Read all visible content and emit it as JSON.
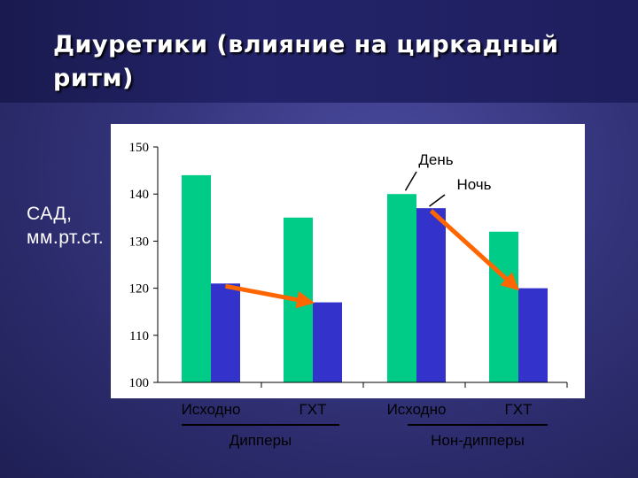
{
  "slide": {
    "title": "Диуретики (влияние на циркадный ритм)",
    "ylabel": "САД, мм.рт.ст."
  },
  "chart_data": {
    "type": "bar",
    "categories": [
      "Исходно",
      "ГХТ",
      "Исходно",
      "ГХТ"
    ],
    "groups": [
      {
        "label": "Дипперы",
        "categories": [
          0,
          1
        ]
      },
      {
        "label": "Нон-дипперы",
        "categories": [
          2,
          3
        ]
      }
    ],
    "series": [
      {
        "name": "День",
        "values": [
          144,
          135,
          140,
          132
        ],
        "color": "#00cc88"
      },
      {
        "name": "Ночь",
        "values": [
          121,
          117,
          137,
          120
        ],
        "color": "#3333cc"
      }
    ],
    "ylim": [
      100,
      150
    ],
    "yticks": [
      100,
      110,
      120,
      130,
      140,
      150
    ],
    "annotations": [
      {
        "text": "День",
        "points_to": "series 0, category 2"
      },
      {
        "text": "Ночь",
        "points_to": "series 1, category 2"
      }
    ],
    "arrows": [
      {
        "from": {
          "series": 1,
          "category": 0
        },
        "to": {
          "series": 1,
          "category": 1
        },
        "color": "#ff6600"
      },
      {
        "from": {
          "series": 1,
          "category": 2
        },
        "to": {
          "series": 1,
          "category": 3
        },
        "color": "#ff6600"
      }
    ],
    "plot_background": "#ffffff",
    "axis_color": "#000000",
    "grid": false
  }
}
